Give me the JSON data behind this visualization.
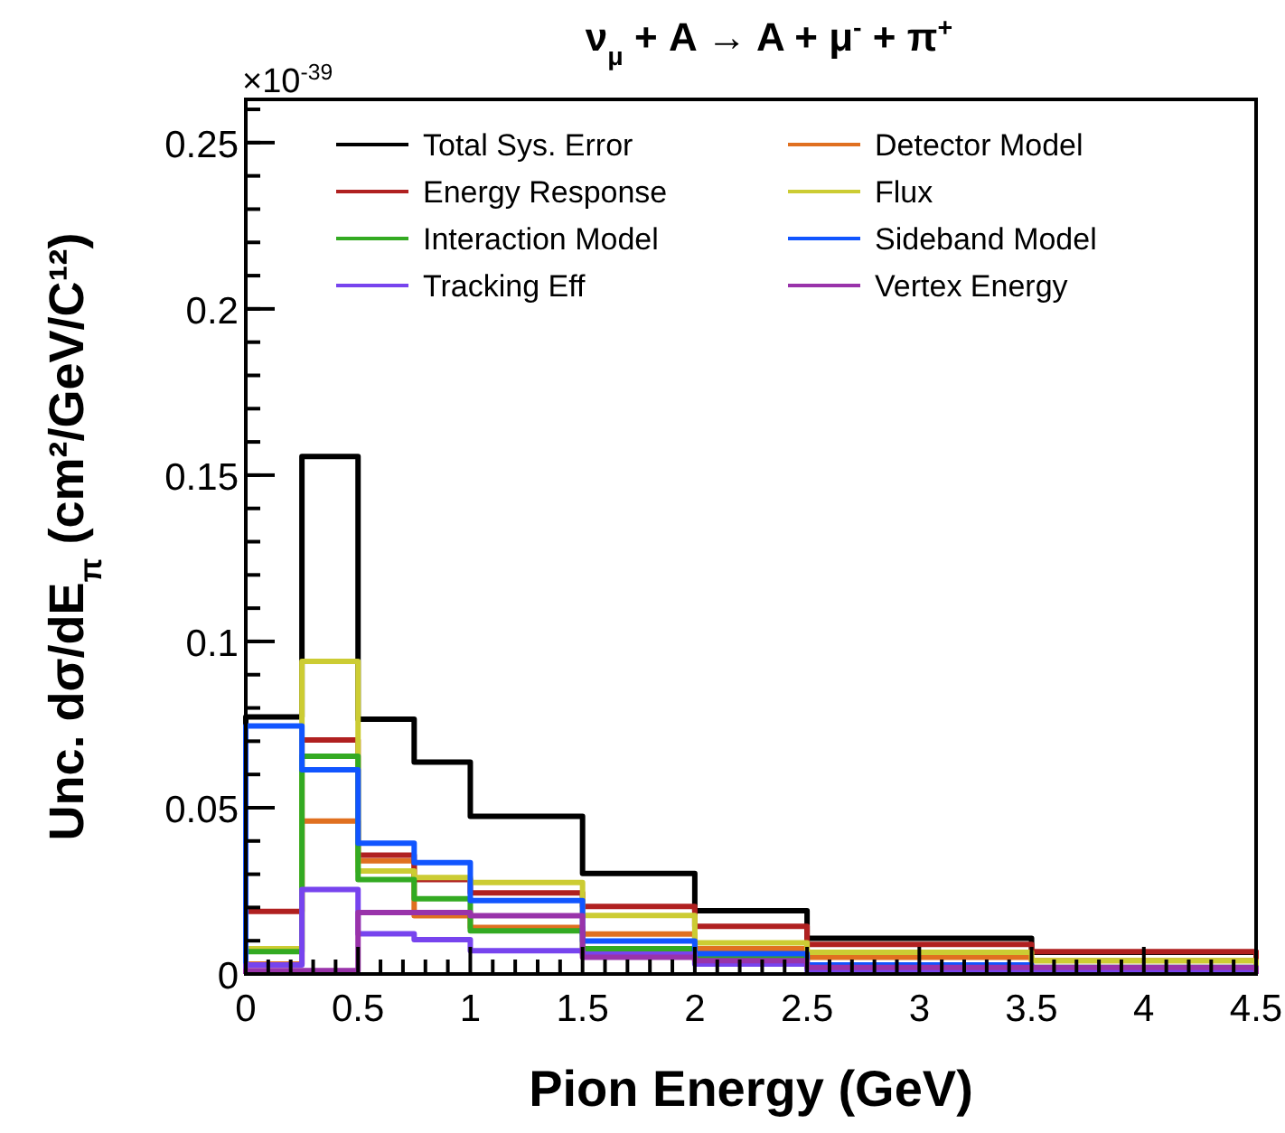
{
  "chart_data": {
    "type": "histogram",
    "title": "ν$_{μ}$ + A → A + μ$^{-}$ + π$^{+}$",
    "xlabel": "Pion Energy (GeV)",
    "ylabel": "Unc. dσ/dE$_{π}$ (cm²/GeV/C¹²)",
    "annotations": [
      "×10$^{-39}$"
    ],
    "bins": [
      0,
      0.25,
      0.5,
      0.75,
      1,
      1.5,
      2,
      2.5,
      3.5,
      4.5
    ],
    "series": [
      {
        "name": "Total Sys. Error",
        "color": "#000000",
        "values": [
          0.0773,
          0.1556,
          0.0766,
          0.0637,
          0.0474,
          0.0302,
          0.019,
          0.0107,
          0.0065
        ]
      },
      {
        "name": "Detector Model",
        "color": "#e07020",
        "values": [
          0.003,
          0.046,
          0.034,
          0.0175,
          0.014,
          0.012,
          0.0076,
          0.005,
          0.004
        ]
      },
      {
        "name": "Energy Response",
        "color": "#b02020",
        "values": [
          0.0188,
          0.0704,
          0.0357,
          0.0284,
          0.0244,
          0.0203,
          0.0143,
          0.0089,
          0.0067
        ]
      },
      {
        "name": "Flux",
        "color": "#cccc33",
        "values": [
          0.0076,
          0.094,
          0.031,
          0.029,
          0.0275,
          0.0176,
          0.0094,
          0.0065,
          0.004
        ]
      },
      {
        "name": "Interaction Model",
        "color": "#33aa22",
        "values": [
          0.0067,
          0.0655,
          0.0284,
          0.0226,
          0.013,
          0.0076,
          0.005,
          0.002,
          0.002
        ]
      },
      {
        "name": "Sideband Model",
        "color": "#1155ff",
        "values": [
          0.0746,
          0.0614,
          0.0393,
          0.0335,
          0.0221,
          0.0099,
          0.0061,
          0.0027,
          0.001
        ]
      },
      {
        "name": "Tracking Eff",
        "color": "#7744ee",
        "values": [
          0.0027,
          0.0254,
          0.0121,
          0.0103,
          0.007,
          0.006,
          0.003,
          0.001,
          0.001
        ]
      },
      {
        "name": "Vertex Energy",
        "color": "#9933aa",
        "values": [
          0.001,
          0.001,
          0.0185,
          0.0185,
          0.0175,
          0.005,
          0.004,
          0.002,
          0.002
        ]
      }
    ],
    "xlim": [
      0,
      4.5
    ],
    "xticks": [
      0,
      0.5,
      1,
      1.5,
      2,
      2.5,
      3,
      3.5,
      4,
      4.5
    ],
    "ylim": [
      0,
      0.263
    ],
    "yticks": [
      0,
      0.05,
      0.1,
      0.15,
      0.2,
      0.25
    ],
    "legend": "top",
    "grid": false
  }
}
